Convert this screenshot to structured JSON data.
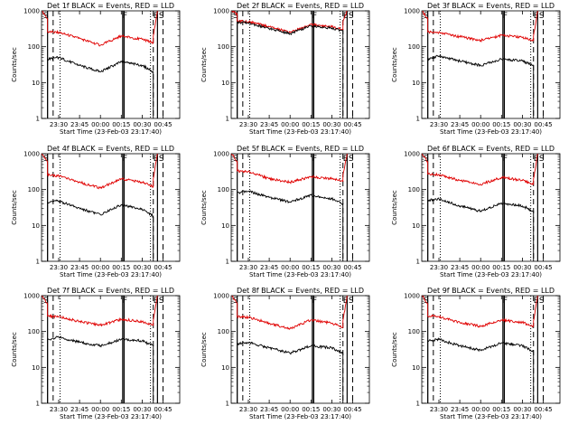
{
  "chart_data": [
    {
      "type": "line",
      "title": "Det 1f BLACK = Events, RED = LLD",
      "xlabel": "Start Time (23-Feb-03 23:17:40)",
      "ylabel": "Counts/sec",
      "yscale": "log",
      "ylim": [
        1,
        1000
      ],
      "xlim": [
        "23:17:40",
        "00:57:00"
      ],
      "x_tick_labels": [
        "23:30",
        "23:45",
        "00:00",
        "00:15",
        "00:30",
        "00:45"
      ],
      "y_tick_labels": [
        "1",
        "10",
        "100",
        "1000"
      ],
      "markers": [
        "S",
        "F",
        "E",
        "S"
      ],
      "series": [
        {
          "color": "#e00000",
          "x": [
            "23:18",
            "23:22",
            "23:22",
            "23:30",
            "23:45",
            "00:00",
            "00:15",
            "00:30",
            "00:38",
            "00:38",
            "00:41"
          ],
          "y": [
            1000,
            600,
            260,
            250,
            170,
            110,
            200,
            160,
            130,
            200,
            1000
          ]
        },
        {
          "color": "#000000",
          "x": [
            "23:22",
            "23:22",
            "23:30",
            "23:45",
            "00:00",
            "00:15",
            "00:30",
            "00:38",
            "00:38"
          ],
          "y": [
            1,
            45,
            50,
            30,
            20,
            38,
            30,
            20,
            1
          ]
        }
      ]
    },
    {
      "type": "line",
      "title": "Det 2f BLACK = Events, RED = LLD",
      "xlabel": "Start Time (23-Feb-03 23:17:40)",
      "ylabel": "Counts/sec",
      "yscale": "log",
      "ylim": [
        1,
        1000
      ],
      "xlim": [
        "23:17:40",
        "00:57:00"
      ],
      "x_tick_labels": [
        "23:30",
        "23:45",
        "00:00",
        "00:15",
        "00:30",
        "00:45"
      ],
      "y_tick_labels": [
        "1",
        "10",
        "100",
        "1000"
      ],
      "markers": [
        "S",
        "F",
        "E",
        "S"
      ],
      "series": [
        {
          "color": "#e00000",
          "x": [
            "23:18",
            "23:22",
            "23:22",
            "23:30",
            "23:45",
            "00:00",
            "00:15",
            "00:30",
            "00:38",
            "00:38",
            "00:41"
          ],
          "y": [
            1000,
            800,
            520,
            500,
            360,
            250,
            420,
            360,
            300,
            500,
            1000
          ]
        },
        {
          "color": "#000000",
          "x": [
            "23:22",
            "23:22",
            "23:30",
            "23:45",
            "00:00",
            "00:15",
            "00:30",
            "00:38",
            "00:38"
          ],
          "y": [
            1,
            480,
            460,
            320,
            230,
            380,
            330,
            280,
            1
          ]
        }
      ]
    },
    {
      "type": "line",
      "title": "Det 3f BLACK = Events, RED = LLD",
      "xlabel": "Start Time (23-Feb-03 23:17:40)",
      "ylabel": "Counts/sec",
      "yscale": "log",
      "ylim": [
        1,
        1000
      ],
      "xlim": [
        "23:17:40",
        "00:57:00"
      ],
      "x_tick_labels": [
        "23:30",
        "23:45",
        "00:00",
        "00:15",
        "00:30",
        "00:45"
      ],
      "y_tick_labels": [
        "1",
        "10",
        "100",
        "1000"
      ],
      "markers": [
        "S",
        "F",
        "E",
        "S"
      ],
      "series": [
        {
          "color": "#e00000",
          "x": [
            "23:18",
            "23:22",
            "23:22",
            "23:30",
            "23:45",
            "00:00",
            "00:15",
            "00:30",
            "00:38",
            "00:38",
            "00:41"
          ],
          "y": [
            1000,
            600,
            260,
            250,
            190,
            150,
            210,
            180,
            150,
            200,
            1000
          ]
        },
        {
          "color": "#000000",
          "x": [
            "23:22",
            "23:22",
            "23:30",
            "23:45",
            "00:00",
            "00:15",
            "00:30",
            "00:38",
            "00:38"
          ],
          "y": [
            1,
            45,
            55,
            40,
            30,
            45,
            40,
            30,
            1
          ]
        }
      ]
    },
    {
      "type": "line",
      "title": "Det 4f BLACK = Events, RED = LLD",
      "xlabel": "Start Time (23-Feb-03 23:17:40)",
      "ylabel": "Counts/sec",
      "yscale": "log",
      "ylim": [
        1,
        1000
      ],
      "xlim": [
        "23:17:40",
        "00:57:00"
      ],
      "x_tick_labels": [
        "23:30",
        "23:45",
        "00:00",
        "00:15",
        "00:30",
        "00:45"
      ],
      "y_tick_labels": [
        "1",
        "10",
        "100",
        "1000"
      ],
      "markers": [
        "S",
        "F",
        "E",
        "S"
      ],
      "series": [
        {
          "color": "#e00000",
          "x": [
            "23:18",
            "23:22",
            "23:22",
            "23:30",
            "23:45",
            "00:00",
            "00:15",
            "00:30",
            "00:38",
            "00:38",
            "00:41"
          ],
          "y": [
            1000,
            600,
            260,
            240,
            160,
            110,
            200,
            160,
            120,
            200,
            1000
          ]
        },
        {
          "color": "#000000",
          "x": [
            "23:22",
            "23:22",
            "23:30",
            "23:45",
            "00:00",
            "00:15",
            "00:30",
            "00:38",
            "00:38"
          ],
          "y": [
            1,
            45,
            48,
            30,
            20,
            38,
            28,
            18,
            1
          ]
        }
      ]
    },
    {
      "type": "line",
      "title": "Det 5f BLACK = Events, RED = LLD",
      "xlabel": "Start Time (23-Feb-03 23:17:40)",
      "ylabel": "Counts/sec",
      "yscale": "log",
      "ylim": [
        1,
        1000
      ],
      "xlim": [
        "23:17:40",
        "00:57:00"
      ],
      "x_tick_labels": [
        "23:30",
        "23:45",
        "00:00",
        "00:15",
        "00:30",
        "00:45"
      ],
      "y_tick_labels": [
        "1",
        "10",
        "100",
        "1000"
      ],
      "markers": [
        "S",
        "F",
        "E",
        "S"
      ],
      "series": [
        {
          "color": "#e00000",
          "x": [
            "23:18",
            "23:22",
            "23:22",
            "23:30",
            "23:45",
            "00:00",
            "00:15",
            "00:30",
            "00:38",
            "00:38",
            "00:41"
          ],
          "y": [
            1000,
            600,
            330,
            320,
            200,
            160,
            230,
            200,
            170,
            250,
            1000
          ]
        },
        {
          "color": "#000000",
          "x": [
            "23:22",
            "23:22",
            "23:30",
            "23:45",
            "00:00",
            "00:15",
            "00:30",
            "00:38",
            "00:38"
          ],
          "y": [
            1,
            80,
            90,
            60,
            45,
            70,
            55,
            40,
            1
          ]
        }
      ]
    },
    {
      "type": "line",
      "title": "Det 6f BLACK = Events, RED = LLD",
      "xlabel": "Start Time (23-Feb-03 23:17:40)",
      "ylabel": "Counts/sec",
      "yscale": "log",
      "ylim": [
        1,
        1000
      ],
      "xlim": [
        "23:17:40",
        "00:57:00"
      ],
      "x_tick_labels": [
        "23:30",
        "23:45",
        "00:00",
        "00:15",
        "00:30",
        "00:45"
      ],
      "y_tick_labels": [
        "1",
        "10",
        "100",
        "1000"
      ],
      "markers": [
        "S",
        "F",
        "E",
        "S"
      ],
      "series": [
        {
          "color": "#e00000",
          "x": [
            "23:18",
            "23:22",
            "23:22",
            "23:30",
            "23:45",
            "00:00",
            "00:15",
            "00:30",
            "00:38",
            "00:38",
            "00:41"
          ],
          "y": [
            1000,
            600,
            270,
            260,
            180,
            140,
            220,
            180,
            140,
            200,
            1000
          ]
        },
        {
          "color": "#000000",
          "x": [
            "23:22",
            "23:22",
            "23:30",
            "23:45",
            "00:00",
            "00:15",
            "00:30",
            "00:38",
            "00:38"
          ],
          "y": [
            1,
            50,
            55,
            35,
            25,
            42,
            35,
            25,
            1
          ]
        }
      ]
    },
    {
      "type": "line",
      "title": "Det 7f BLACK = Events, RED = LLD",
      "xlabel": "Start Time (23-Feb-03 23:17:40)",
      "ylabel": "Counts/sec",
      "yscale": "log",
      "ylim": [
        1,
        1000
      ],
      "xlim": [
        "23:17:40",
        "00:57:00"
      ],
      "x_tick_labels": [
        "23:30",
        "23:45",
        "00:00",
        "00:15",
        "00:30",
        "00:45"
      ],
      "y_tick_labels": [
        "1",
        "10",
        "100",
        "1000"
      ],
      "markers": [
        "S",
        "F",
        "E",
        "S"
      ],
      "series": [
        {
          "color": "#e00000",
          "x": [
            "23:18",
            "23:22",
            "23:22",
            "23:30",
            "23:45",
            "00:00",
            "00:15",
            "00:30",
            "00:38",
            "00:38",
            "00:41"
          ],
          "y": [
            1000,
            600,
            270,
            260,
            190,
            150,
            220,
            190,
            150,
            200,
            1000
          ]
        },
        {
          "color": "#000000",
          "x": [
            "23:22",
            "23:22",
            "23:30",
            "23:45",
            "00:00",
            "00:15",
            "00:30",
            "00:38",
            "00:38"
          ],
          "y": [
            1,
            60,
            70,
            50,
            40,
            60,
            55,
            40,
            1
          ]
        }
      ]
    },
    {
      "type": "line",
      "title": "Det 8f BLACK = Events, RED = LLD",
      "xlabel": "Start Time (23-Feb-03 23:17:40)",
      "ylabel": "Counts/sec",
      "yscale": "log",
      "ylim": [
        1,
        1000
      ],
      "xlim": [
        "23:17:40",
        "00:57:00"
      ],
      "x_tick_labels": [
        "23:30",
        "23:45",
        "00:00",
        "00:15",
        "00:30",
        "00:45"
      ],
      "y_tick_labels": [
        "1",
        "10",
        "100",
        "1000"
      ],
      "markers": [
        "S",
        "F",
        "E",
        "S"
      ],
      "series": [
        {
          "color": "#e00000",
          "x": [
            "23:18",
            "23:22",
            "23:22",
            "23:30",
            "23:45",
            "00:00",
            "00:15",
            "00:30",
            "00:38",
            "00:38",
            "00:41"
          ],
          "y": [
            1000,
            600,
            260,
            250,
            170,
            120,
            210,
            170,
            130,
            200,
            1000
          ]
        },
        {
          "color": "#000000",
          "x": [
            "23:22",
            "23:22",
            "23:30",
            "23:45",
            "00:00",
            "00:15",
            "00:30",
            "00:38",
            "00:38"
          ],
          "y": [
            1,
            45,
            50,
            35,
            25,
            40,
            35,
            25,
            1
          ]
        }
      ]
    },
    {
      "type": "line",
      "title": "Det 9f BLACK = Events, RED = LLD",
      "xlabel": "Start Time (23-Feb-03 23:17:40)",
      "ylabel": "Counts/sec",
      "yscale": "log",
      "ylim": [
        1,
        1000
      ],
      "xlim": [
        "23:17:40",
        "00:57:00"
      ],
      "x_tick_labels": [
        "23:30",
        "23:45",
        "00:00",
        "00:15",
        "00:30",
        "00:45"
      ],
      "y_tick_labels": [
        "1",
        "10",
        "100",
        "1000"
      ],
      "markers": [
        "S",
        "F",
        "E",
        "S"
      ],
      "series": [
        {
          "color": "#e00000",
          "x": [
            "23:18",
            "23:22",
            "23:22",
            "23:30",
            "23:45",
            "00:00",
            "00:15",
            "00:30",
            "00:38",
            "00:38",
            "00:41"
          ],
          "y": [
            1000,
            600,
            270,
            260,
            180,
            140,
            210,
            180,
            140,
            200,
            1000
          ]
        },
        {
          "color": "#000000",
          "x": [
            "23:22",
            "23:22",
            "23:30",
            "23:45",
            "00:00",
            "00:15",
            "00:30",
            "00:38",
            "00:38"
          ],
          "y": [
            1,
            55,
            60,
            40,
            30,
            48,
            40,
            28,
            1
          ]
        }
      ]
    }
  ]
}
